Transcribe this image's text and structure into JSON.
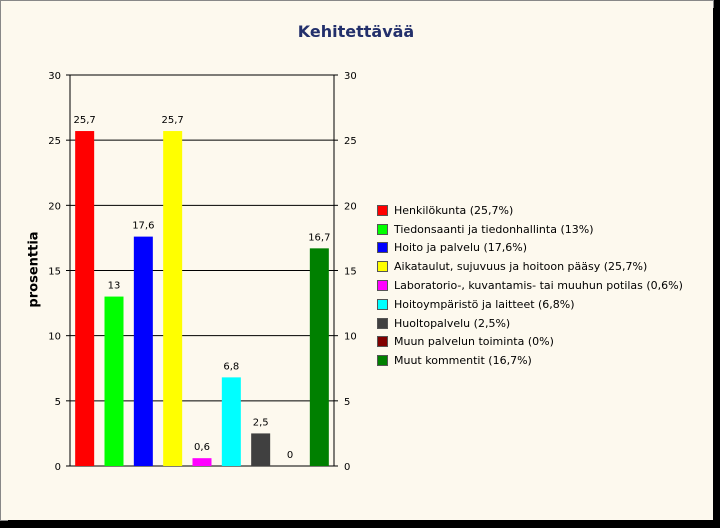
{
  "chart_data": {
    "type": "bar",
    "title": "Kehitettävää",
    "ylabel": "prosenttia",
    "xlabel": "",
    "ylim": [
      0,
      30
    ],
    "yticks": [
      0,
      5,
      10,
      15,
      20,
      25,
      30
    ],
    "secondary_axis": true,
    "grid": true,
    "legend_position": "right",
    "series": [
      {
        "name": "Henkilökunta  (25,7%)",
        "value": 25.7,
        "label": "25,7",
        "color": "#ff0000"
      },
      {
        "name": "Tiedonsaanti ja tiedonhallinta (13%)",
        "value": 13,
        "label": "13",
        "color": "#00ff00"
      },
      {
        "name": "Hoito ja palvelu (17,6%)",
        "value": 17.6,
        "label": "17,6",
        "color": "#0000ff"
      },
      {
        "name": "Aikataulut, sujuvuus ja hoitoon pääsy (25,7%)",
        "value": 25.7,
        "label": "25,7",
        "color": "#ffff00"
      },
      {
        "name": "Laboratorio-, kuvantamis- tai muuhun potilas (0,6%)",
        "value": 0.6,
        "label": "0,6",
        "color": "#ff00ff"
      },
      {
        "name": "Hoitoympäristö ja laitteet (6,8%)",
        "value": 6.8,
        "label": "6,8",
        "color": "#00ffff"
      },
      {
        "name": "Huoltopalvelu (2,5%)",
        "value": 2.5,
        "label": "2,5",
        "color": "#404040"
      },
      {
        "name": "Muun palvelun toiminta (0%)",
        "value": 0,
        "label": "0",
        "color": "#800000"
      },
      {
        "name": "Muut kommentit (16,7%)",
        "value": 16.7,
        "label": "16,7",
        "color": "#008000"
      }
    ]
  }
}
